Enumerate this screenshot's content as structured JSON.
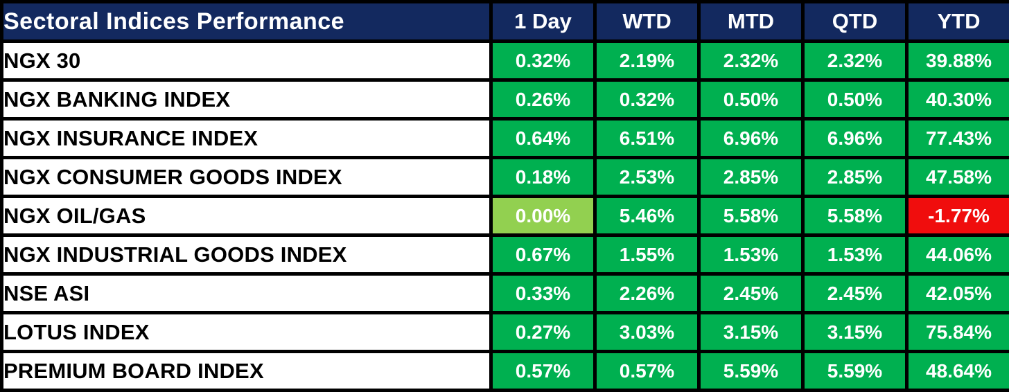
{
  "chart_data": {
    "type": "table",
    "title": "Sectoral Indices Performance",
    "columns": [
      "1 Day",
      "WTD",
      "MTD",
      "QTD",
      "YTD"
    ],
    "rows": [
      {
        "label": "NGX 30",
        "values": [
          "0.32%",
          "2.19%",
          "2.32%",
          "2.32%",
          "39.88%"
        ],
        "cell_styles": [
          "green",
          "green",
          "green",
          "green",
          "green"
        ]
      },
      {
        "label": "NGX BANKING INDEX",
        "values": [
          "0.26%",
          "0.32%",
          "0.50%",
          "0.50%",
          "40.30%"
        ],
        "cell_styles": [
          "green",
          "green",
          "green",
          "green",
          "green"
        ]
      },
      {
        "label": "NGX INSURANCE INDEX",
        "values": [
          "0.64%",
          "6.51%",
          "6.96%",
          "6.96%",
          "77.43%"
        ],
        "cell_styles": [
          "green",
          "green",
          "green",
          "green",
          "green"
        ]
      },
      {
        "label": "NGX CONSUMER GOODS INDEX",
        "values": [
          "0.18%",
          "2.53%",
          "2.85%",
          "2.85%",
          "47.58%"
        ],
        "cell_styles": [
          "green",
          "green",
          "green",
          "green",
          "green"
        ]
      },
      {
        "label": "NGX OIL/GAS",
        "values": [
          "0.00%",
          "5.46%",
          "5.58%",
          "5.58%",
          "-1.77%"
        ],
        "cell_styles": [
          "light_green",
          "green",
          "green",
          "green",
          "red"
        ]
      },
      {
        "label": "NGX INDUSTRIAL GOODS INDEX",
        "values": [
          "0.67%",
          "1.55%",
          "1.53%",
          "1.53%",
          "44.06%"
        ],
        "cell_styles": [
          "green",
          "green",
          "green",
          "green",
          "green"
        ]
      },
      {
        "label": "NSE ASI",
        "values": [
          "0.33%",
          "2.26%",
          "2.45%",
          "2.45%",
          "42.05%"
        ],
        "cell_styles": [
          "green",
          "green",
          "green",
          "green",
          "green"
        ]
      },
      {
        "label": "LOTUS INDEX",
        "values": [
          "0.27%",
          "3.03%",
          "3.15%",
          "3.15%",
          "75.84%"
        ],
        "cell_styles": [
          "green",
          "green",
          "green",
          "green",
          "green"
        ]
      },
      {
        "label": "PREMIUM BOARD INDEX",
        "values": [
          "0.57%",
          "0.57%",
          "5.59%",
          "5.59%",
          "48.64%"
        ],
        "cell_styles": [
          "green",
          "green",
          "green",
          "green",
          "green"
        ]
      }
    ],
    "legend_semantics": {
      "green": "positive return",
      "light_green": "flat / zero return",
      "red": "negative return"
    }
  },
  "colors": {
    "header_bg": "#13295F",
    "header_text": "#FFFFFF",
    "label_bg": "#FFFFFF",
    "label_text": "#000000",
    "value_text": "#FFFFFF",
    "green": "#00B050",
    "light_green": "#92D050",
    "red": "#F00D0D",
    "border": "#000000"
  }
}
